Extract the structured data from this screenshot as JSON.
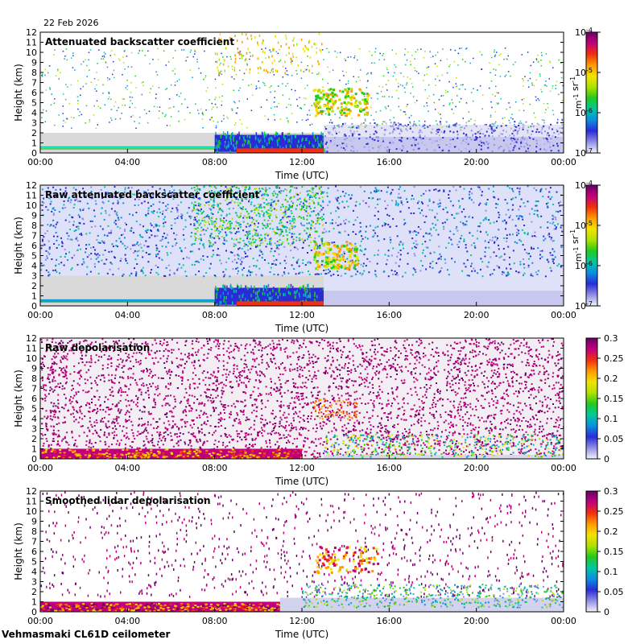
{
  "date": "22 Feb 2026",
  "footer": "Vehmasmaki CL61D ceilometer",
  "time_axis_label": "Time (UTC)",
  "height_axis_label": "Height (km)",
  "colors": {
    "background": "#ffffff",
    "clear_air": "#d9d9d9",
    "colormap": [
      "#f4f4fb",
      "#8f8fe6",
      "#2b2bd6",
      "#0a8fe0",
      "#00c8a0",
      "#22c91e",
      "#aee000",
      "#f3e200",
      "#ff9a00",
      "#f03010",
      "#c0007a",
      "#6a0066"
    ]
  },
  "chart_data": [
    {
      "type": "heatmap",
      "title": "Attenuated backscatter coefficient",
      "xlabel": "Time (UTC)",
      "ylabel": "Height (km)",
      "x_ticks": [
        "00:00",
        "04:00",
        "08:00",
        "12:00",
        "16:00",
        "20:00",
        "00:00"
      ],
      "xlim": [
        "00:00",
        "24:00"
      ],
      "y_ticks": [
        0,
        1,
        2,
        3,
        4,
        5,
        6,
        7,
        8,
        9,
        10,
        11,
        12
      ],
      "ylim": [
        0,
        12
      ],
      "colorbar": {
        "scale": "log",
        "min": 1e-07,
        "max": 0.0001,
        "tick_labels": [
          "10-7",
          "10-6",
          "10-5",
          "10-4"
        ],
        "unit": "m-1 sr-1"
      }
    },
    {
      "type": "heatmap",
      "title": "Raw attenuated backscatter coefficient",
      "xlabel": "Time (UTC)",
      "ylabel": "Height (km)",
      "x_ticks": [
        "00:00",
        "04:00",
        "08:00",
        "12:00",
        "16:00",
        "20:00",
        "00:00"
      ],
      "xlim": [
        "00:00",
        "24:00"
      ],
      "y_ticks": [
        0,
        1,
        2,
        3,
        4,
        5,
        6,
        7,
        8,
        9,
        10,
        11,
        12
      ],
      "ylim": [
        0,
        12
      ],
      "colorbar": {
        "scale": "log",
        "min": 1e-07,
        "max": 0.0001,
        "tick_labels": [
          "10-7",
          "10-6",
          "10-5",
          "10-4"
        ],
        "unit": "m-1 sr-1"
      }
    },
    {
      "type": "heatmap",
      "title": "Raw depolarisation",
      "xlabel": "Time (UTC)",
      "ylabel": "Height (km)",
      "x_ticks": [
        "00:00",
        "04:00",
        "08:00",
        "12:00",
        "16:00",
        "20:00",
        "00:00"
      ],
      "xlim": [
        "00:00",
        "24:00"
      ],
      "y_ticks": [
        0,
        1,
        2,
        3,
        4,
        5,
        6,
        7,
        8,
        9,
        10,
        11,
        12
      ],
      "ylim": [
        0,
        12
      ],
      "colorbar": {
        "scale": "linear",
        "min": 0,
        "max": 0.3,
        "tick_labels": [
          "0",
          "0.05",
          "0.1",
          "0.15",
          "0.2",
          "0.25",
          "0.3"
        ],
        "unit": ""
      }
    },
    {
      "type": "heatmap",
      "title": "Smoothed lidar depolarisation",
      "xlabel": "Time (UTC)",
      "ylabel": "Height (km)",
      "x_ticks": [
        "00:00",
        "04:00",
        "08:00",
        "12:00",
        "16:00",
        "20:00",
        "00:00"
      ],
      "xlim": [
        "00:00",
        "24:00"
      ],
      "y_ticks": [
        0,
        1,
        2,
        3,
        4,
        5,
        6,
        7,
        8,
        9,
        10,
        11,
        12
      ],
      "ylim": [
        0,
        12
      ],
      "colorbar": {
        "scale": "linear",
        "min": 0,
        "max": 0.3,
        "tick_labels": [
          "0",
          "0.05",
          "0.1",
          "0.15",
          "0.2",
          "0.25",
          "0.3"
        ],
        "unit": ""
      }
    }
  ]
}
